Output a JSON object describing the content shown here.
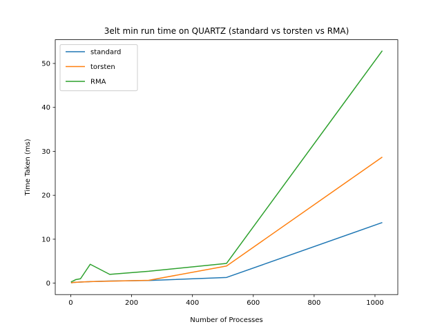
{
  "chart_data": {
    "type": "line",
    "title": "3elt min run time on QUARTZ (standard vs torsten vs RMA)",
    "xlabel": "Number of Processes",
    "ylabel": "Time Taken (ms)",
    "xlim": [
      -51,
      1075
    ],
    "ylim": [
      -2.6,
      55.4
    ],
    "xticks": [
      0,
      200,
      400,
      600,
      800,
      1000
    ],
    "yticks": [
      0,
      10,
      20,
      30,
      40,
      50
    ],
    "grid": false,
    "legend_position": "top-left",
    "x": [
      1,
      2,
      4,
      8,
      16,
      32,
      64,
      128,
      256,
      512,
      1024
    ],
    "series": [
      {
        "name": "standard",
        "color": "#1f77b4",
        "values": [
          0.1,
          0.1,
          0.1,
          0.15,
          0.2,
          0.25,
          0.35,
          0.5,
          0.6,
          1.3,
          13.8
        ]
      },
      {
        "name": "torsten",
        "color": "#ff7f0e",
        "values": [
          0.1,
          0.1,
          0.1,
          0.15,
          0.2,
          0.25,
          0.35,
          0.45,
          0.65,
          3.9,
          28.7
        ]
      },
      {
        "name": "RMA",
        "color": "#2ca02c",
        "values": [
          0.2,
          0.3,
          0.4,
          0.5,
          0.8,
          1.0,
          4.3,
          2.0,
          2.7,
          4.5,
          52.9
        ]
      }
    ]
  }
}
